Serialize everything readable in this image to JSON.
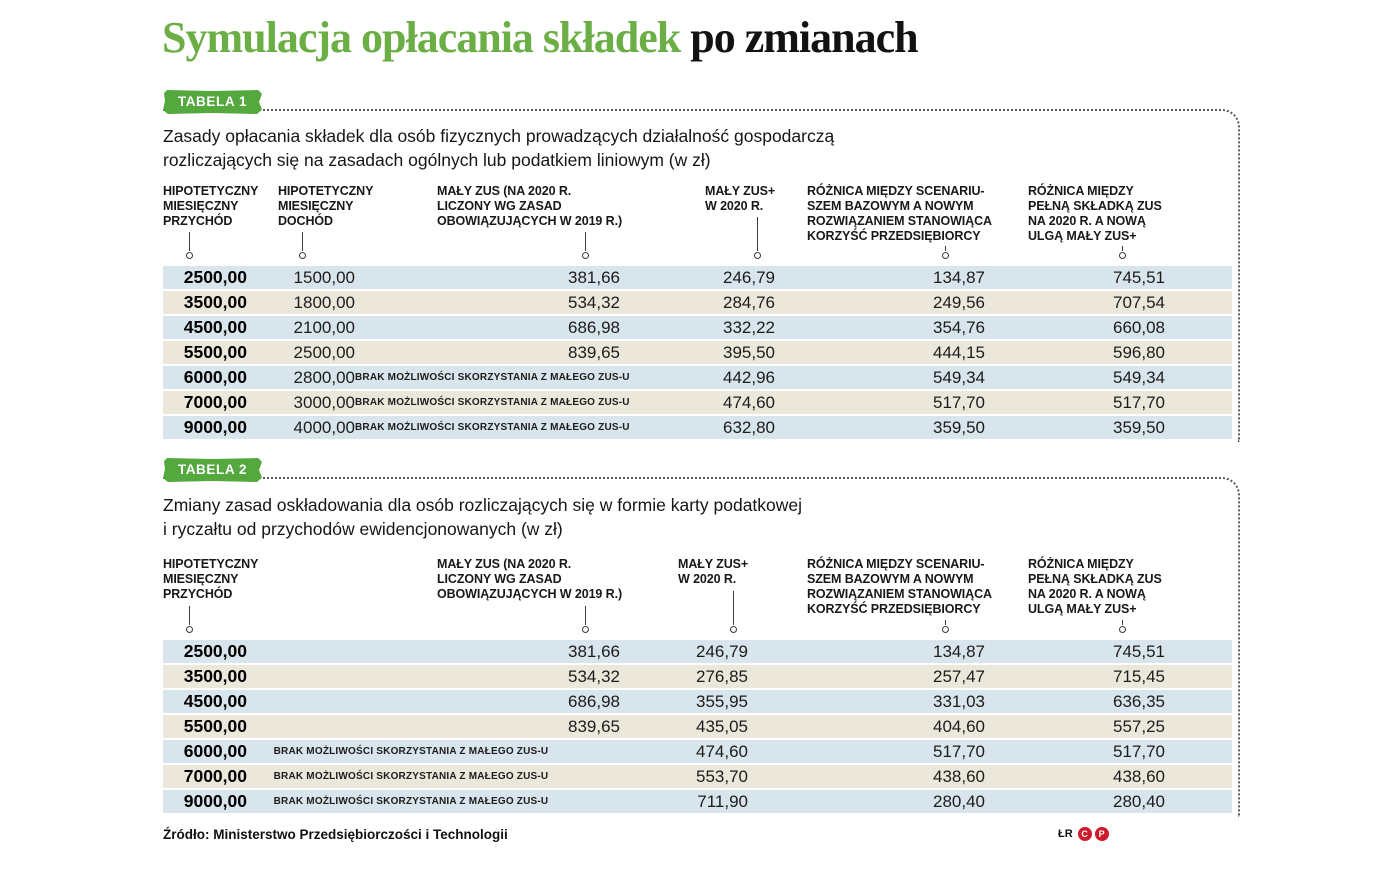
{
  "title": {
    "highlight": "Symulacja opłacania składek",
    "rest": " po zmianach"
  },
  "colors": {
    "title_green": "#6bae45",
    "badge_green": "#54a83e",
    "row_blue": "#d8e5ec",
    "row_cream": "#ebe8db",
    "credit_red": "#ce1a2b"
  },
  "chart_data": [
    {
      "type": "table",
      "badge": "Tabela 1",
      "description_lines": [
        "Zasady opłacania składek dla osób fizycznych prowadzących działalność gospodarczą",
        "rozliczających się na zasadach ogólnych lub podatkiem liniowym (w zł)"
      ],
      "columns": [
        {
          "lines": [
            "HIPOTETYCZNY",
            "MIESIĘCZNY",
            "PRZYCHÓD"
          ]
        },
        {
          "lines": [
            "HIPOTETYCZNY",
            "MIESIĘCZNY",
            "DOCHÓD"
          ]
        },
        {
          "lines": [
            "MAŁY ZUS (NA 2020 R.",
            "LICZONY WG ZASAD",
            "OBOWIĄZUJĄCYCH W 2019 R.)"
          ]
        },
        {
          "lines": [
            "MAŁY ZUS+",
            "W 2020 R."
          ]
        },
        {
          "lines": [
            "RÓŻNICA MIĘDZY SCENARIU-",
            "SZEM BAZOWYM A NOWYM",
            "ROZWIĄZANIEM STANOWIĄCA",
            "KORZYŚĆ PRZEDSIĘBIORCY"
          ]
        },
        {
          "lines": [
            "RÓŻNICA MIĘDZY",
            "PEŁNĄ SKŁADKĄ ZUS",
            "NA 2020 R. A NOWĄ",
            "ULGĄ MAŁY ZUS+"
          ]
        }
      ],
      "rows": [
        [
          "2500,00",
          "1500,00",
          "381,66",
          "246,79",
          "134,87",
          "745,51"
        ],
        [
          "3500,00",
          "1800,00",
          "534,32",
          "284,76",
          "249,56",
          "707,54"
        ],
        [
          "4500,00",
          "2100,00",
          "686,98",
          "332,22",
          "354,76",
          "660,08"
        ],
        [
          "5500,00",
          "2500,00",
          "839,65",
          "395,50",
          "444,15",
          "596,80"
        ],
        [
          "6000,00",
          "2800,00",
          "BRAK MOŻLIWOŚCI SKORZYSTANIA Z MAŁEGO ZUS-U",
          "442,96",
          "549,34",
          "549,34"
        ],
        [
          "7000,00",
          "3000,00",
          "BRAK MOŻLIWOŚCI SKORZYSTANIA Z MAŁEGO ZUS-U",
          "474,60",
          "517,70",
          "517,70"
        ],
        [
          "9000,00",
          "4000,00",
          "BRAK MOŻLIWOŚCI SKORZYSTANIA Z MAŁEGO ZUS-U",
          "632,80",
          "359,50",
          "359,50"
        ]
      ]
    },
    {
      "type": "table",
      "badge": "Tabela 2",
      "description_lines": [
        "Zmiany zasad oskładowania dla osób rozliczających się w formie karty podatkowej",
        "i ryczałtu od przychodów ewidencjonowanych (w zł)"
      ],
      "columns": [
        {
          "lines": [
            "HIPOTETYCZNY",
            "MIESIĘCZNY",
            "PRZYCHÓD"
          ]
        },
        {
          "lines": [
            "MAŁY ZUS (NA 2020 R.",
            "LICZONY WG ZASAD",
            "OBOWIĄZUJĄCYCH W 2019 R.)"
          ]
        },
        {
          "lines": [
            "MAŁY ZUS+",
            "W 2020 R."
          ]
        },
        {
          "lines": [
            "RÓŻNICA MIĘDZY SCENARIU-",
            "SZEM BAZOWYM A NOWYM",
            "ROZWIĄZANIEM STANOWIĄCA",
            "KORZYŚĆ PRZEDSIĘBIORCY"
          ]
        },
        {
          "lines": [
            "RÓŻNICA MIĘDZY",
            "PEŁNĄ SKŁADKĄ ZUS",
            "NA 2020 R. A NOWĄ",
            "ULGĄ MAŁY ZUS+"
          ]
        }
      ],
      "rows": [
        [
          "2500,00",
          "381,66",
          "246,79",
          "134,87",
          "745,51"
        ],
        [
          "3500,00",
          "534,32",
          "276,85",
          "257,47",
          "715,45"
        ],
        [
          "4500,00",
          "686,98",
          "355,95",
          "331,03",
          "636,35"
        ],
        [
          "5500,00",
          "839,65",
          "435,05",
          "404,60",
          "557,25"
        ],
        [
          "6000,00",
          "BRAK MOŻLIWOŚCI SKORZYSTANIA Z MAŁEGO ZUS-U",
          "474,60",
          "517,70",
          "517,70"
        ],
        [
          "7000,00",
          "BRAK MOŻLIWOŚCI SKORZYSTANIA Z MAŁEGO ZUS-U",
          "553,70",
          "438,60",
          "438,60"
        ],
        [
          "9000,00",
          "BRAK MOŻLIWOŚCI SKORZYSTANIA Z MAŁEGO ZUS-U",
          "711,90",
          "280,40",
          "280,40"
        ]
      ]
    }
  ],
  "footer": {
    "source": "Źródło: Ministerstwo Przedsiębiorczości i Technologii",
    "author_initials": "ŁR",
    "credit_icons": [
      "C",
      "P"
    ]
  }
}
